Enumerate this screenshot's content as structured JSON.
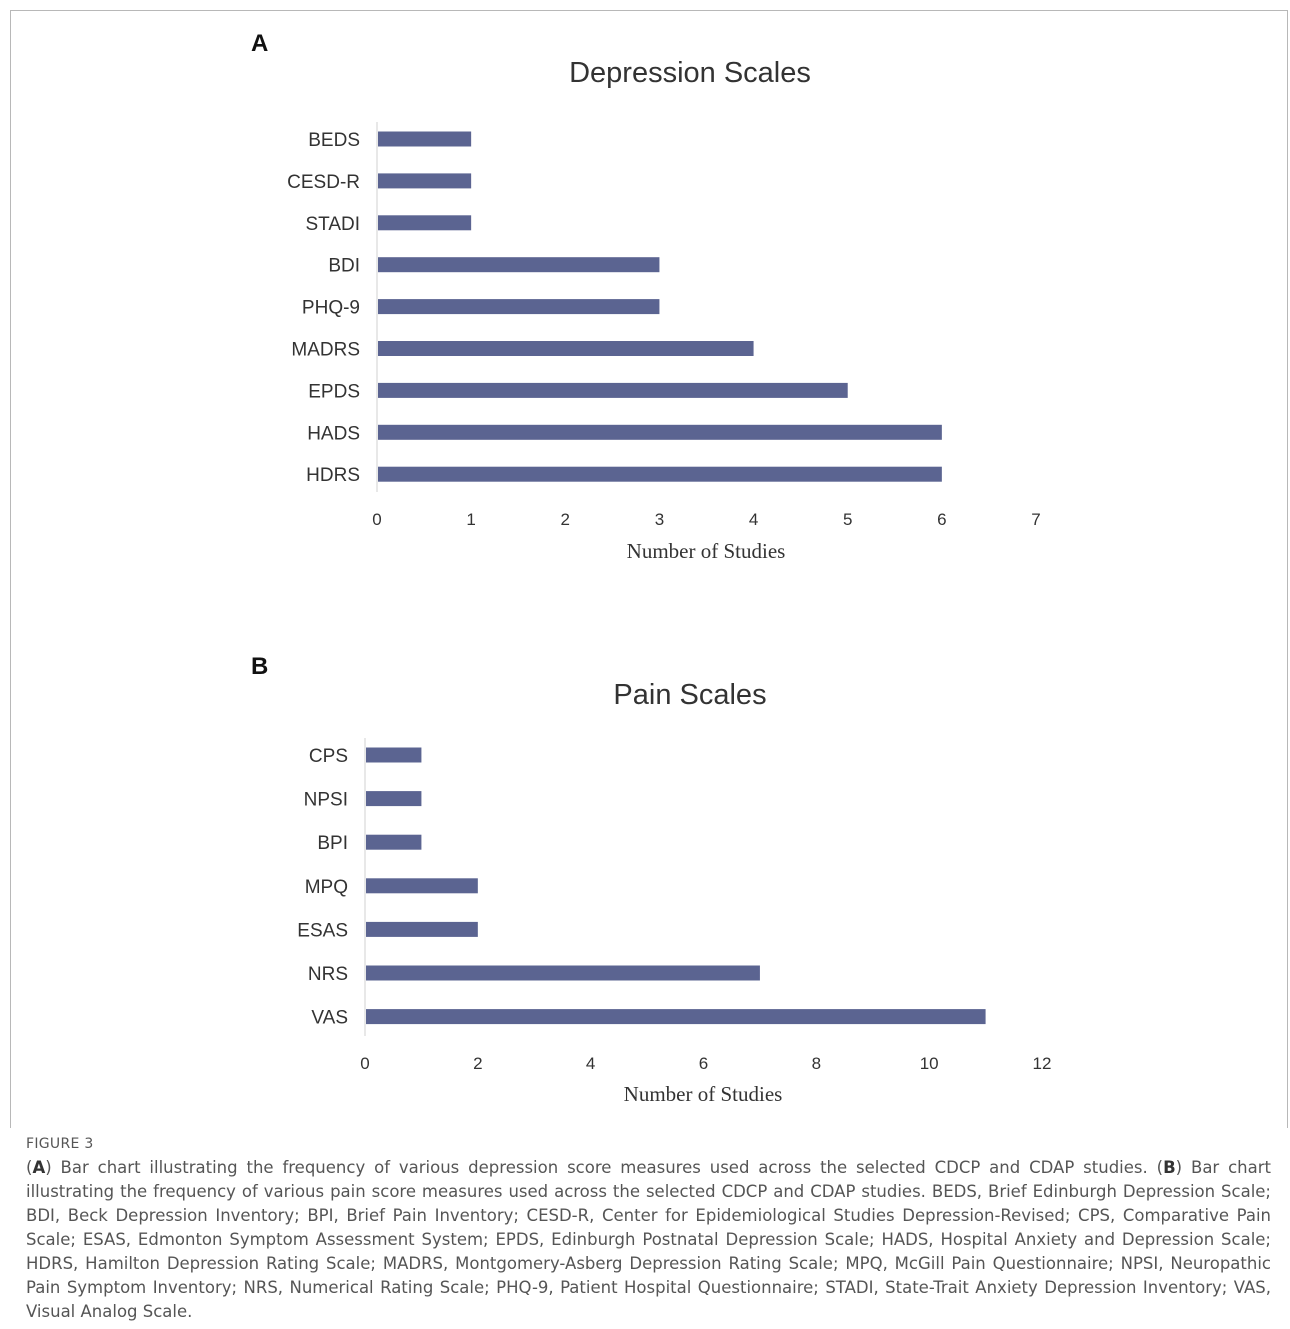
{
  "panels": [
    {
      "label": "A",
      "chart_data": {
        "type": "bar",
        "orientation": "horizontal",
        "title": "Depression Scales",
        "categories": [
          "BEDS",
          "CESD-R",
          "STADI",
          "BDI",
          "PHQ-9",
          "MADRS",
          "EPDS",
          "HADS",
          "HDRS"
        ],
        "values": [
          1,
          1,
          1,
          3,
          3,
          4,
          5,
          6,
          6
        ],
        "xlabel": "Number of Studies",
        "ylabel": "",
        "xlim": [
          0,
          7
        ],
        "xticks": [
          0,
          1,
          2,
          3,
          4,
          5,
          6,
          7
        ],
        "grid": false,
        "bar_color": "#5b6491"
      }
    },
    {
      "label": "B",
      "chart_data": {
        "type": "bar",
        "orientation": "horizontal",
        "title": "Pain Scales",
        "categories": [
          "CPS",
          "NPSI",
          "BPI",
          "MPQ",
          "ESAS",
          "NRS",
          "VAS"
        ],
        "values": [
          1,
          1,
          1,
          2,
          2,
          7,
          11
        ],
        "xlabel": "Number of Studies",
        "ylabel": "",
        "xlim": [
          0,
          12
        ],
        "xticks": [
          0,
          2,
          4,
          6,
          8,
          10,
          12
        ],
        "grid": false,
        "bar_color": "#5b6491"
      }
    }
  ],
  "figure_label": "FIGURE 3",
  "caption": {
    "a_label": "A",
    "a_text": ") Bar chart illustrating the frequency of various depression score measures used across the selected CDCP and CDAP studies. (",
    "b_label": "B",
    "b_text": ") Bar chart illustrating the frequency of various pain score measures used across the selected CDCP and CDAP studies. BEDS, Brief Edinburgh Depression Scale; BDI, Beck Depression Inventory; BPI, Brief Pain Inventory; CESD-R, Center for Epidemiological Studies Depression-Revised; CPS, Comparative Pain Scale; ESAS, Edmonton Symptom Assessment System; EPDS, Edinburgh Postnatal Depression Scale; HADS, Hospital Anxiety and Depression Scale; HDRS, Hamilton Depression Rating Scale; MADRS, Montgomery-Asberg Depression Rating Scale; MPQ, McGill Pain Questionnaire; NPSI, Neuropathic Pain Symptom Inventory; NRS, Numerical Rating Scale; PHQ-9, Patient Hospital Questionnaire; STADI, State-Trait Anxiety Depression Inventory; VAS, Visual Analog Scale."
  }
}
